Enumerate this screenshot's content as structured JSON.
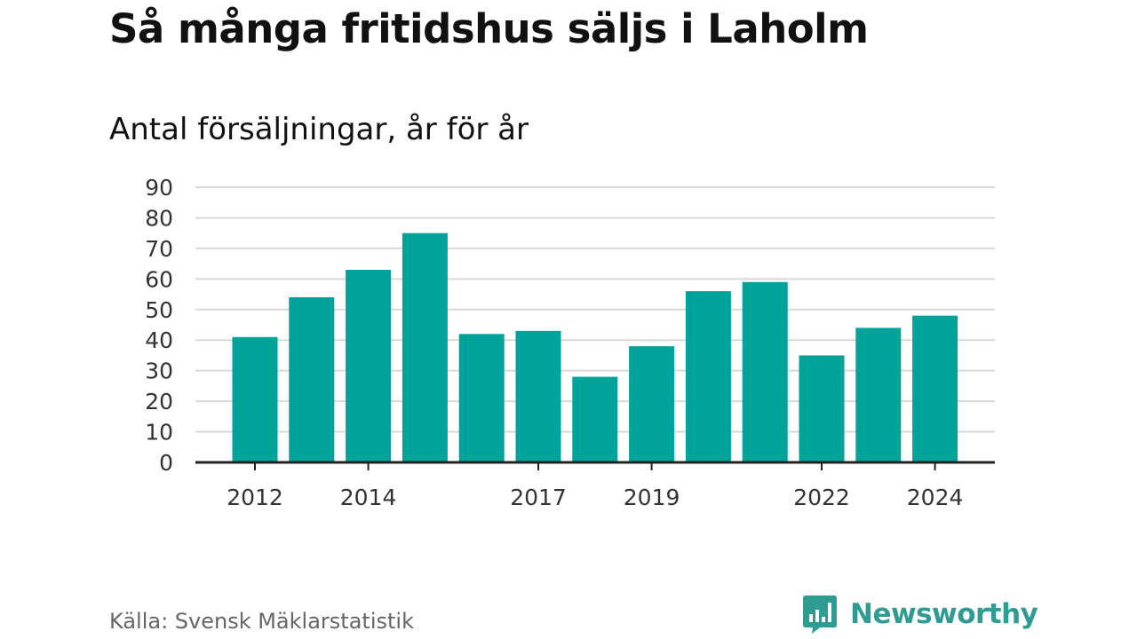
{
  "header": {
    "title": "Så många fritidshus säljs i Laholm",
    "subtitle": "Antal försäljningar, år för år"
  },
  "footer": {
    "source": "Källa: Svensk Mäklarstatistik",
    "brand": "Newsworthy",
    "brand_icon": "bar-chart-speech-bubble-icon"
  },
  "colors": {
    "bar": "#00a39a",
    "grid": "#d9d9d9",
    "axis": "#222222",
    "brand": "#2f9c94"
  },
  "chart_data": {
    "type": "bar",
    "title": "Så många fritidshus säljs i Laholm",
    "subtitle": "Antal försäljningar, år för år",
    "xlabel": "",
    "ylabel": "",
    "categories": [
      "2012",
      "2013",
      "2014",
      "2015",
      "2016",
      "2017",
      "2018",
      "2019",
      "2020",
      "2021",
      "2022",
      "2023",
      "2024"
    ],
    "values": [
      41,
      54,
      63,
      75,
      42,
      43,
      28,
      38,
      56,
      59,
      35,
      44,
      48
    ],
    "x_tick_labels": [
      "2012",
      "2014",
      "2017",
      "2019",
      "2022",
      "2024"
    ],
    "y_ticks": [
      0,
      10,
      20,
      30,
      40,
      50,
      60,
      70,
      80,
      90
    ],
    "ylim": [
      0,
      90
    ],
    "grid": true,
    "legend": "none"
  }
}
